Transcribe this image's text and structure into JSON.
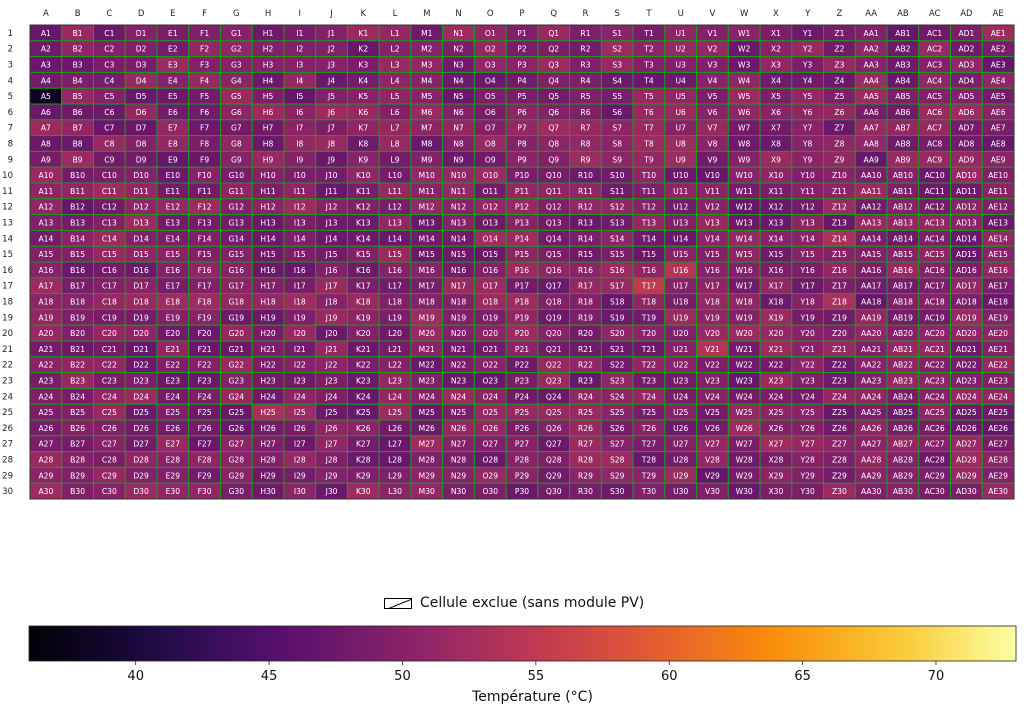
{
  "chart_data": {
    "type": "heatmap",
    "columns": [
      "A",
      "B",
      "C",
      "D",
      "E",
      "F",
      "G",
      "H",
      "I",
      "J",
      "K",
      "L",
      "M",
      "N",
      "O",
      "P",
      "Q",
      "R",
      "S",
      "T",
      "U",
      "V",
      "W",
      "X",
      "Y",
      "Z",
      "AA",
      "AB",
      "AC",
      "AD",
      "AE"
    ],
    "rows": [
      1,
      2,
      3,
      4,
      5,
      6,
      7,
      8,
      9,
      10,
      11,
      12,
      13,
      14,
      15,
      16,
      17,
      18,
      19,
      20,
      21,
      22,
      23,
      24,
      25,
      26,
      27,
      28,
      29,
      30
    ],
    "cell_label_format": "{column}{row}",
    "temperature_range": [
      36,
      73
    ],
    "typical_cell_temperature": [
      47,
      52
    ],
    "hot_spots": [
      {
        "cell": "A5",
        "temp": 38
      },
      {
        "cell": "T17",
        "temp": 55
      },
      {
        "cell": "U16",
        "temp": 54
      },
      {
        "cell": "V21",
        "temp": 54
      },
      {
        "cell": "Z18",
        "temp": 53
      },
      {
        "cell": "Z14",
        "temp": 53
      },
      {
        "cell": "H25",
        "temp": 53
      },
      {
        "cell": "O14",
        "temp": 52
      },
      {
        "cell": "M19",
        "temp": 52
      },
      {
        "cell": "I18",
        "temp": 52
      },
      {
        "cell": "Q7",
        "temp": 52
      },
      {
        "cell": "I25",
        "temp": 52
      },
      {
        "cell": "U8",
        "temp": 52
      },
      {
        "cell": "T24",
        "temp": 51
      },
      {
        "cell": "P7",
        "temp": 51
      },
      {
        "cell": "X3",
        "temp": 51
      },
      {
        "cell": "N7",
        "temp": 51
      },
      {
        "cell": "AA28",
        "temp": 51
      }
    ],
    "colorscale": "inferno",
    "grid_color": "#1a9a1a",
    "legend": {
      "label": "Cellule exclue (sans module PV)",
      "location": "below-heatmap"
    },
    "colorbar": {
      "label": "Température (°C)",
      "ticks": [
        40,
        45,
        50,
        55,
        60,
        65,
        70
      ],
      "orientation": "horizontal"
    }
  }
}
